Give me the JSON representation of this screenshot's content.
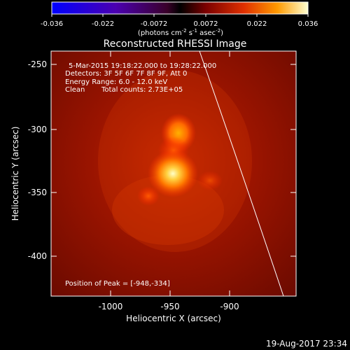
{
  "colorbar": {
    "ticks": [
      "-0.036",
      "-0.022",
      "-0.0072",
      "0.0072",
      "0.022",
      "0.036"
    ],
    "units_prefix": "(photons cm",
    "units_exp1": "-2",
    "units_mid": " s",
    "units_exp2": "-1",
    "units_mid2": " asec",
    "units_exp3": "-2",
    "units_suffix": ")"
  },
  "title": "Reconstructed RHESSI Image",
  "info": {
    "time_range": "5-Mar-2015 19:18:22.000 to 19:28:22.000",
    "detectors": "Detectors: 3F 5F 6F 7F 8F 9F, Att 0",
    "energy": "Energy Range: 6.0 - 12.0 keV",
    "method": "Clean",
    "total_counts": "Total counts: 2.73E+05",
    "peak": "Position of Peak = [-948,-334]"
  },
  "axes": {
    "xlabel": "Heliocentric X (arcsec)",
    "ylabel": "Heliocentric Y (arcsec)",
    "xticks": [
      "-1000",
      "-950",
      "-900"
    ],
    "yticks": [
      "-250",
      "-300",
      "-350",
      "-400"
    ]
  },
  "footer": {
    "date": "19-Aug-2017 23:34"
  },
  "colors": {
    "background": "#000000",
    "text": "#ffffff",
    "limb": "#ffffff"
  }
}
